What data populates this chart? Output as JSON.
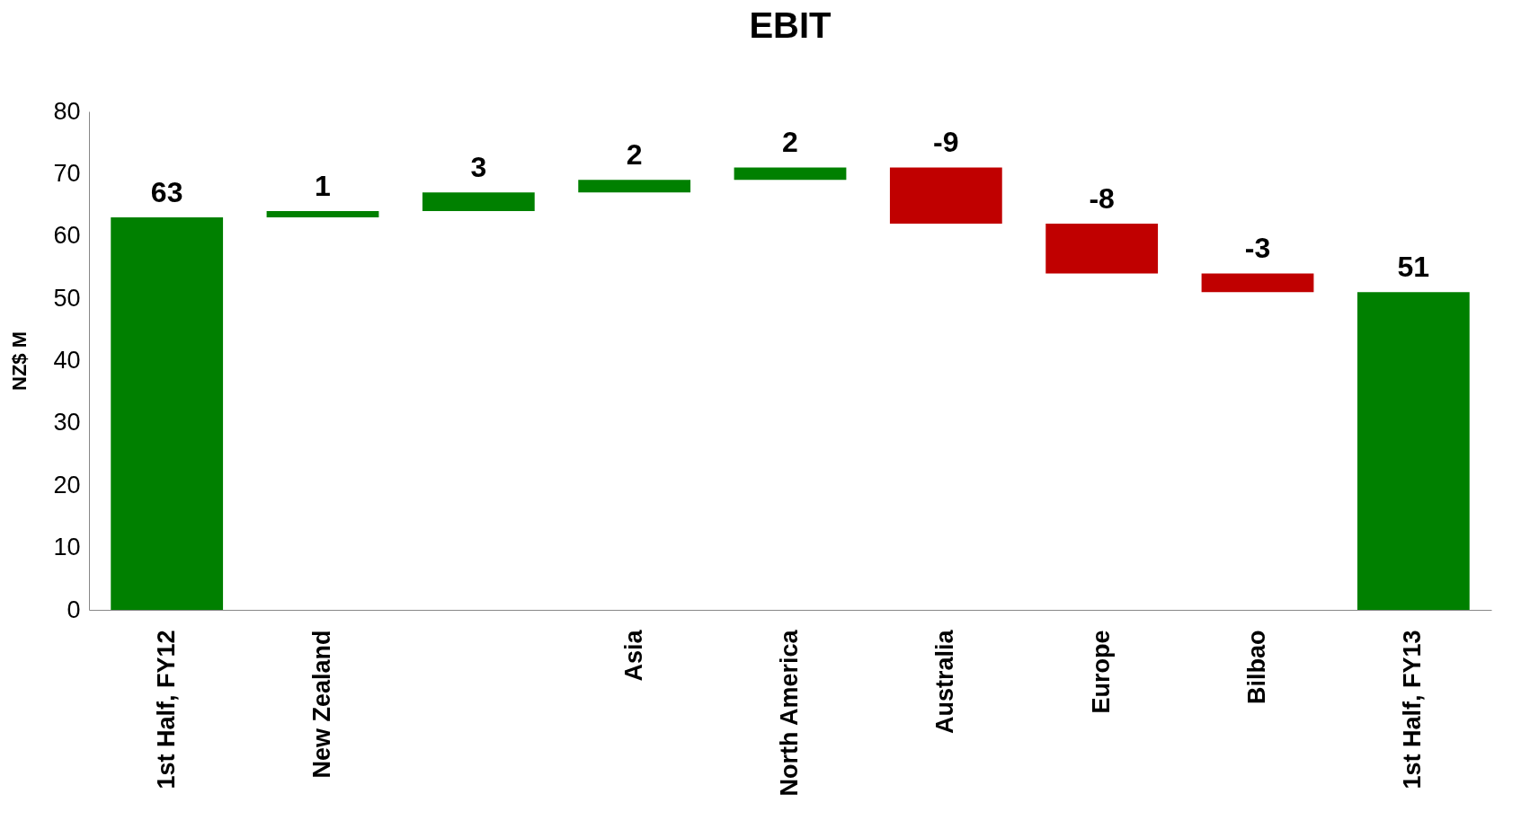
{
  "chart_data": {
    "type": "bar",
    "title": "EBIT",
    "ylabel": "NZ$ M",
    "categories": [
      "1st Half, FY12",
      "New Zealand",
      null,
      "Asia",
      "North America",
      "Australia",
      "Europe",
      "Bilbao",
      "1st Half, FY13"
    ],
    "values": [
      63,
      1,
      3,
      2,
      2,
      -9,
      -8,
      -3,
      51
    ],
    "base": [
      0,
      63,
      64,
      67,
      69,
      71,
      62,
      54,
      0
    ],
    "colors": [
      "#008000",
      "#008000",
      "#008000",
      "#008000",
      "#008000",
      "#c00000",
      "#c00000",
      "#c00000",
      "#008000"
    ],
    "ylim": [
      0,
      80
    ],
    "yticks": [
      0,
      10,
      20,
      30,
      40,
      50,
      60,
      70,
      80
    ],
    "data_labels": true
  }
}
